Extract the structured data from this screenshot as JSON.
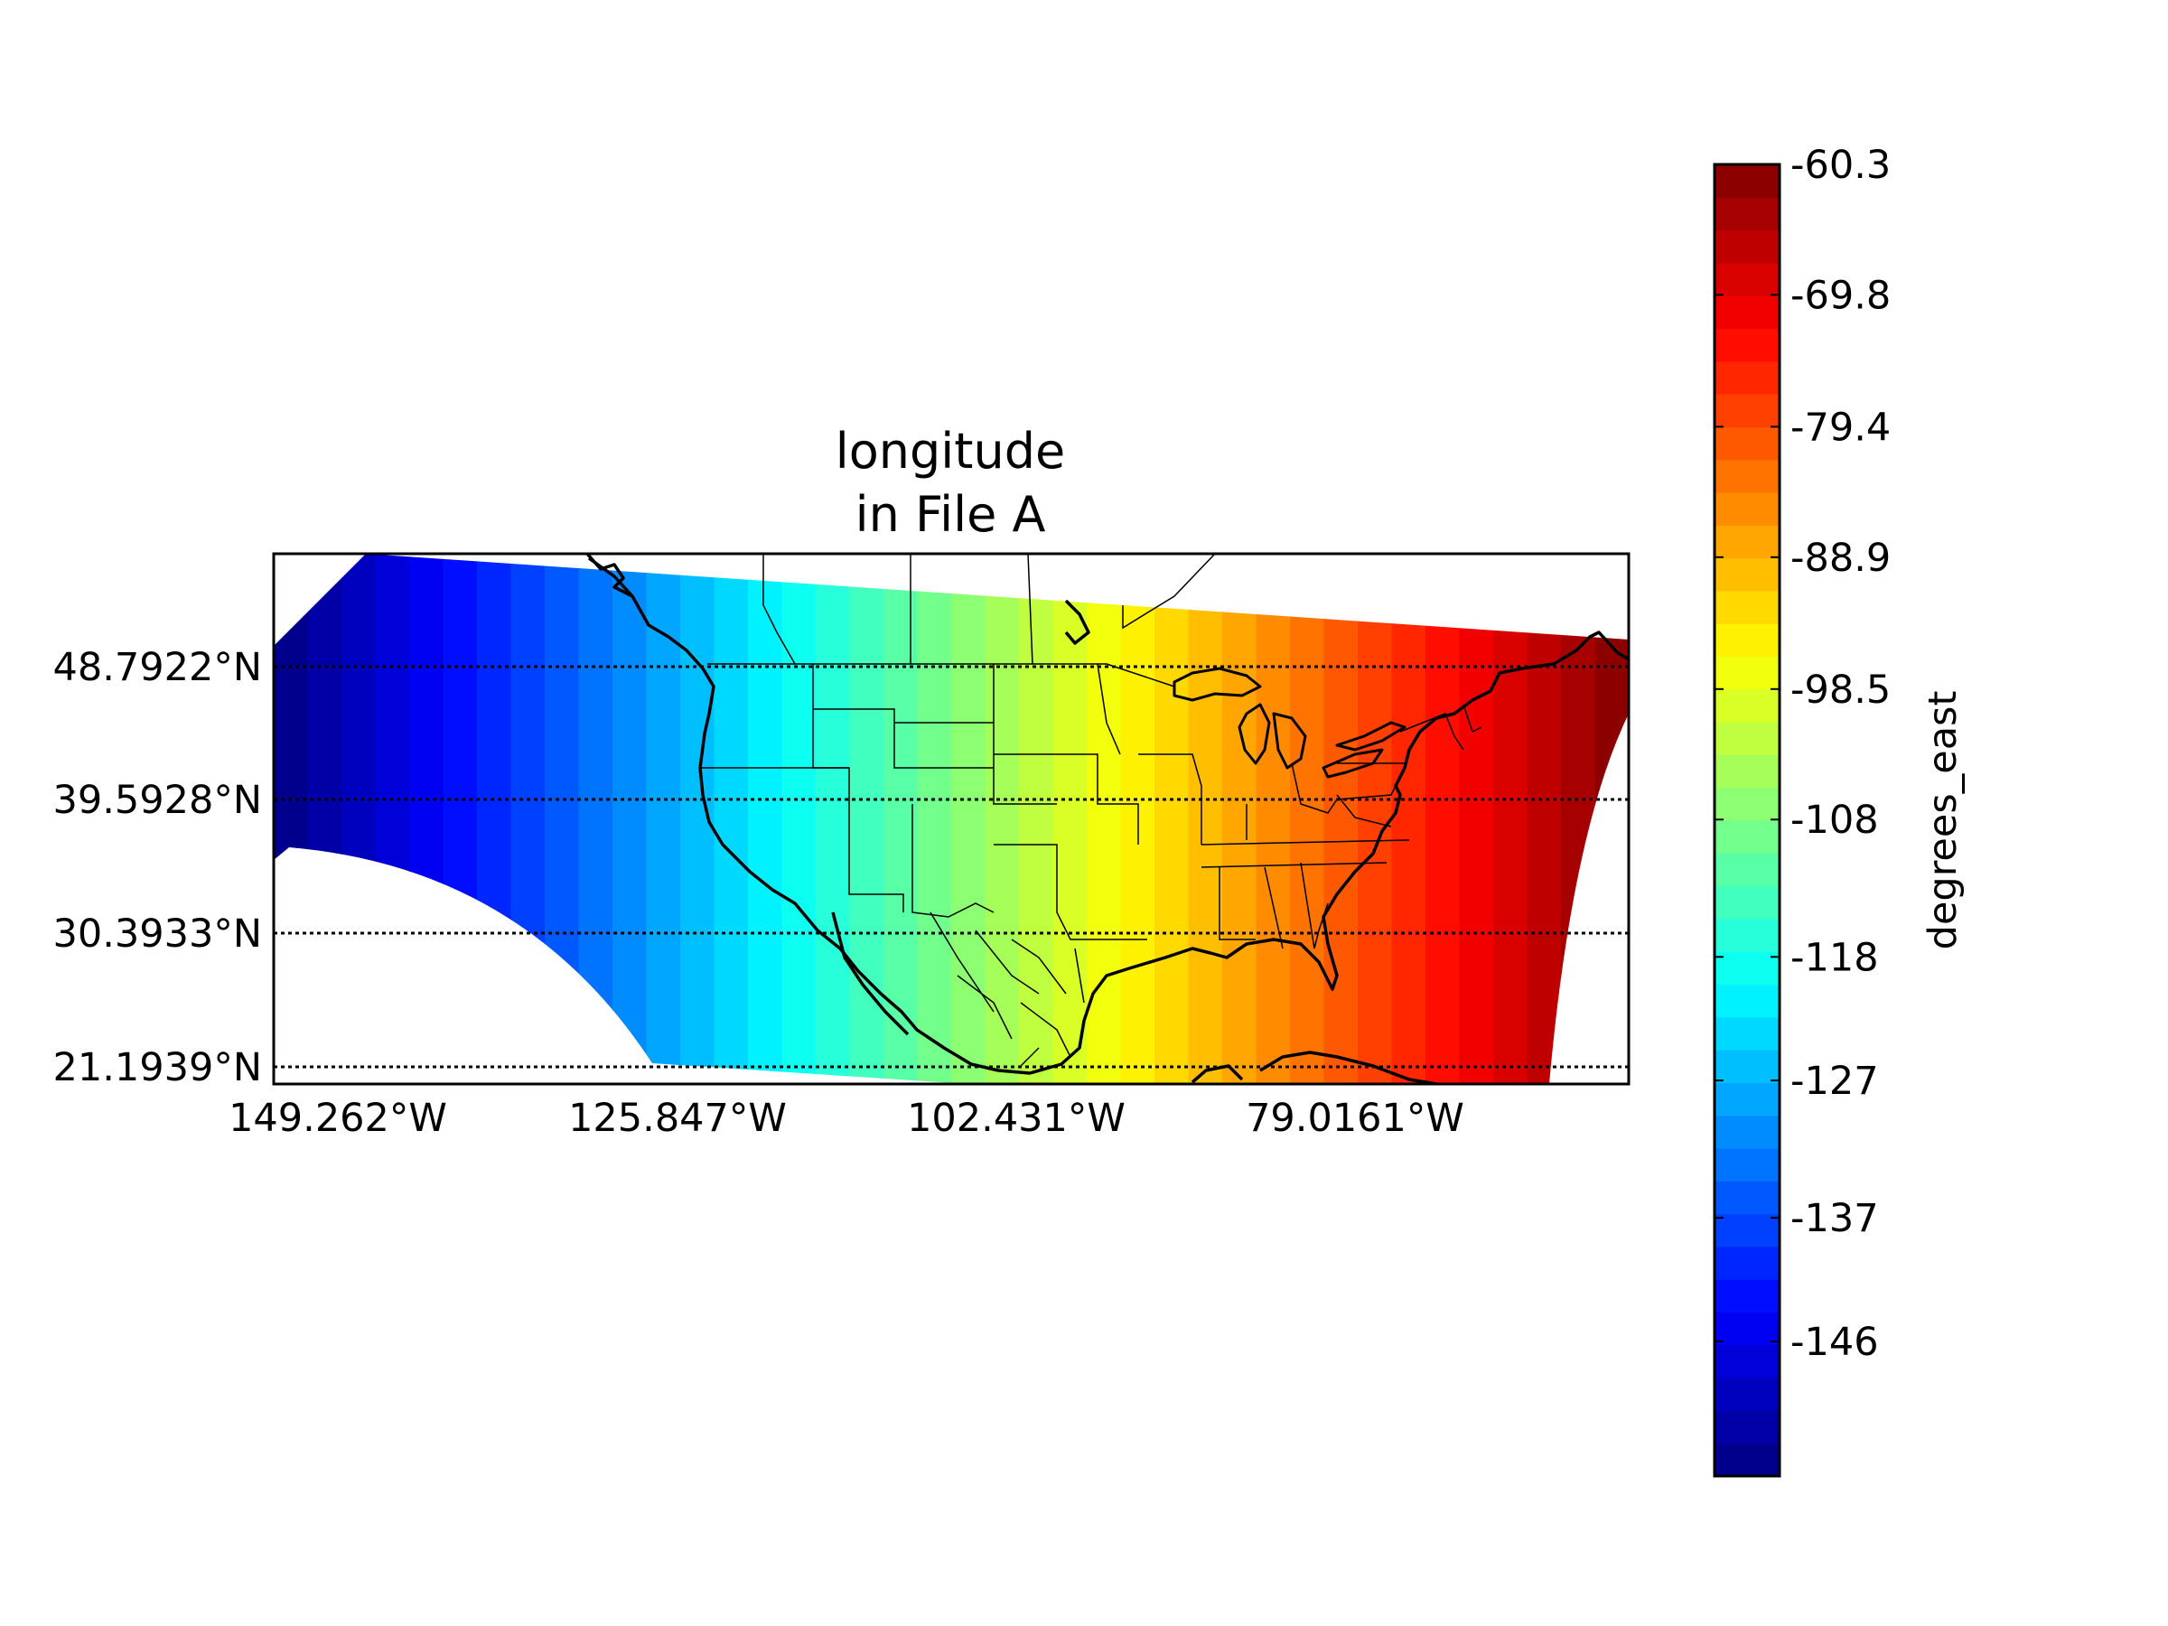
{
  "title_line1": "longitude",
  "title_line2": "in File A",
  "lat_labels": [
    "48.7922°N",
    "39.5928°N",
    "30.3933°N",
    "21.1939°N"
  ],
  "lon_labels": [
    "149.262°W",
    "125.847°W",
    "102.431°W",
    "79.0161°W"
  ],
  "colorbar": {
    "label": "degrees_east",
    "ticks": [
      "-60.3",
      "-69.8",
      "-79.4",
      "-88.9",
      "-98.5",
      "-108",
      "-118",
      "-127",
      "-137",
      "-146"
    ],
    "vmin": -155.8,
    "vmax": -60.3,
    "levels": 40,
    "colormap": "jet"
  },
  "chart_data": {
    "type": "heatmap",
    "variable": "longitude",
    "file": "File A",
    "units": "degrees_east",
    "value_range": [
      -155.8,
      -60.3
    ],
    "x_ticks": [
      "149.262°W",
      "125.847°W",
      "102.431°W",
      "79.0161°W"
    ],
    "y_ticks": [
      "48.7922°N",
      "39.5928°N",
      "30.3933°N",
      "21.1939°N"
    ],
    "grid": true,
    "colorbar_ticks": [
      -60.3,
      -69.8,
      -79.4,
      -88.9,
      -98.5,
      -108,
      -118,
      -127,
      -137,
      -146
    ]
  }
}
